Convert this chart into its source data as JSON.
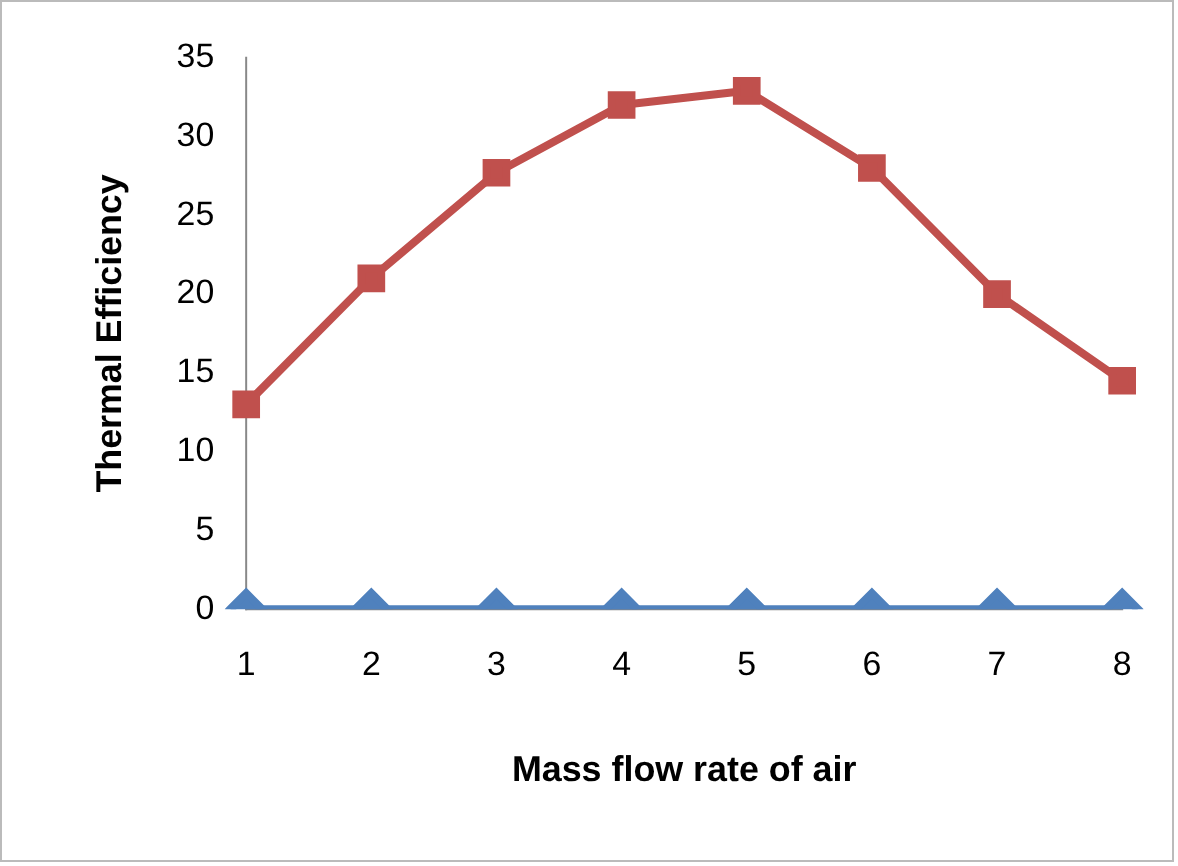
{
  "chart_data": {
    "type": "line",
    "xlabel": "Mass flow rate of air",
    "ylabel": "Thermal Efficiency",
    "categories": [
      "1",
      "2",
      "3",
      "4",
      "5",
      "6",
      "7",
      "8"
    ],
    "series": [
      {
        "color": "#4f81bd",
        "marker": "diamond",
        "values": [
          0,
          0,
          0,
          0,
          0,
          0,
          0,
          0
        ]
      },
      {
        "color": "#c0504d",
        "marker": "square",
        "values": [
          13,
          21,
          27.7,
          32,
          32.9,
          28,
          20,
          14.5
        ]
      }
    ],
    "ylim": [
      0,
      35
    ],
    "yticks": [
      0,
      5,
      10,
      15,
      20,
      25,
      30,
      35
    ],
    "grid": false,
    "legend": false
  }
}
